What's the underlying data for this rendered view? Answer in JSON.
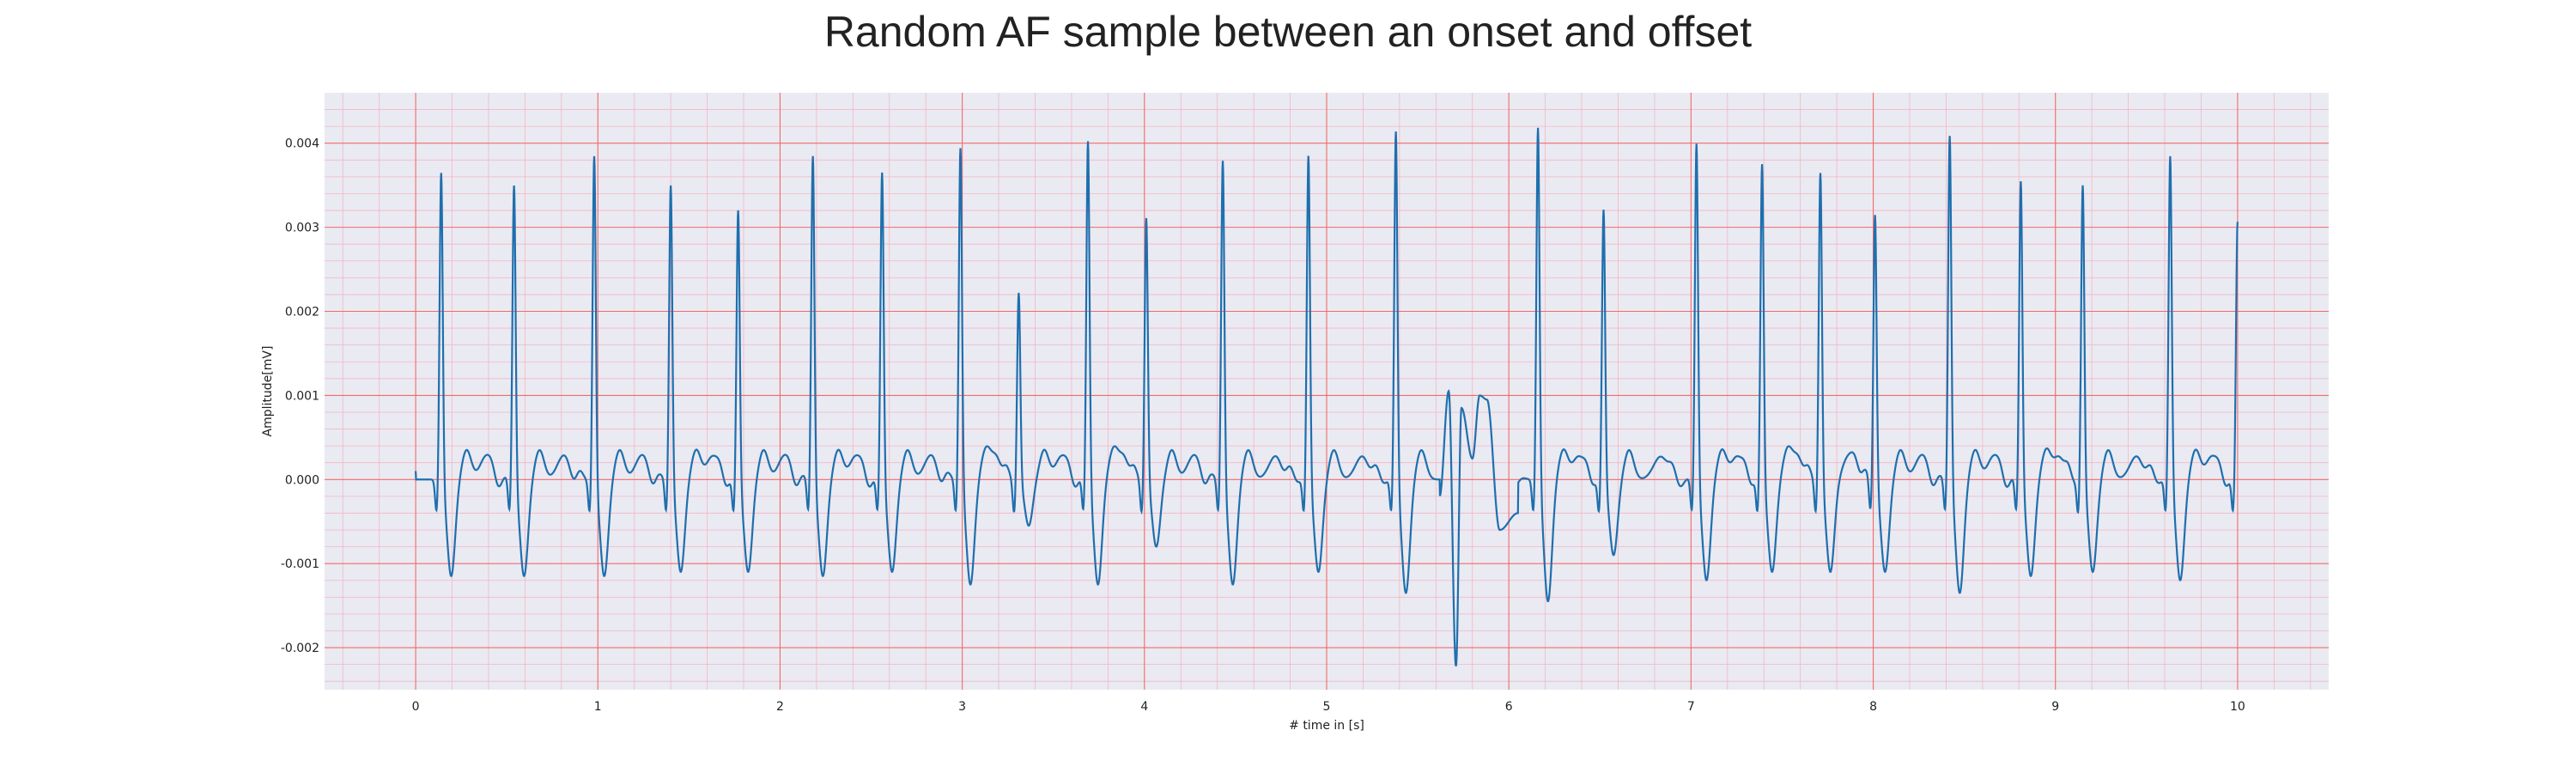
{
  "chart_data": {
    "type": "line",
    "title": "Random AF sample between an onset and offset",
    "xlabel": "# time in [s]",
    "ylabel": "Amplitude[mV]",
    "xlim": [
      -0.5,
      10.5
    ],
    "ylim": [
      -0.0025,
      0.0046
    ],
    "xticks": [
      0,
      1,
      2,
      3,
      4,
      5,
      6,
      7,
      8,
      9,
      10
    ],
    "xtick_labels": [
      "0",
      "1",
      "2",
      "3",
      "4",
      "5",
      "6",
      "7",
      "8",
      "9",
      "10"
    ],
    "yticks": [
      -0.002,
      -0.001,
      0.0,
      0.001,
      0.002,
      0.003,
      0.004
    ],
    "ytick_labels": [
      "-0.002",
      "-0.001",
      "0.000",
      "0.001",
      "0.002",
      "0.003",
      "0.004"
    ],
    "grid": "major and minor",
    "colors": {
      "line": "#1f6fad",
      "plot_background": "#eaeaf2",
      "major_grid": "#f06a6a",
      "minor_grid": "#f4b6c2"
    },
    "series": [
      {
        "beats": [
          {
            "t": 0.14,
            "peak": 0.0037,
            "trough": -0.00115
          },
          {
            "t": 0.54,
            "peak": 0.00355,
            "trough": -0.00115
          },
          {
            "t": 0.98,
            "peak": 0.0039,
            "trough": -0.00115
          },
          {
            "t": 1.4,
            "peak": 0.00355,
            "trough": -0.0011
          },
          {
            "t": 1.77,
            "peak": 0.00325,
            "trough": -0.0011
          },
          {
            "t": 2.18,
            "peak": 0.0039,
            "trough": -0.00115
          },
          {
            "t": 2.56,
            "peak": 0.0037,
            "trough": -0.0011
          },
          {
            "t": 2.99,
            "peak": 0.004,
            "trough": -0.00125
          },
          {
            "t": 3.31,
            "peak": 0.00225,
            "trough": -0.00055
          },
          {
            "t": 3.69,
            "peak": 0.00408,
            "trough": -0.00125
          },
          {
            "t": 4.01,
            "peak": 0.00315,
            "trough": -0.0008
          },
          {
            "t": 4.43,
            "peak": 0.00385,
            "trough": -0.00125
          },
          {
            "t": 4.9,
            "peak": 0.0039,
            "trough": -0.0011
          },
          {
            "t": 5.38,
            "peak": 0.0042,
            "trough": -0.00135
          },
          {
            "t": 6.16,
            "peak": 0.00425,
            "trough": -0.00145
          },
          {
            "t": 6.52,
            "peak": 0.00325,
            "trough": -0.0009
          },
          {
            "t": 7.03,
            "peak": 0.00405,
            "trough": -0.0012
          },
          {
            "t": 7.39,
            "peak": 0.0038,
            "trough": -0.0011
          },
          {
            "t": 7.71,
            "peak": 0.0037,
            "trough": -0.0011
          },
          {
            "t": 8.01,
            "peak": 0.0032,
            "trough": -0.0011
          },
          {
            "t": 8.42,
            "peak": 0.00415,
            "trough": -0.00135
          },
          {
            "t": 8.81,
            "peak": 0.0036,
            "trough": -0.00115
          },
          {
            "t": 9.15,
            "peak": 0.00355,
            "trough": -0.0011
          },
          {
            "t": 9.63,
            "peak": 0.0039,
            "trough": -0.0012
          },
          {
            "t": 10.0,
            "peak": 0.0031,
            "trough": -0.0008
          }
        ],
        "irregular_segment": {
          "points": [
            [
              5.62,
              -0.0002
            ],
            [
              5.67,
              0.00105
            ],
            [
              5.71,
              -0.00222
            ],
            [
              5.74,
              0.00085
            ],
            [
              5.8,
              0.00025
            ],
            [
              5.84,
              0.001
            ],
            [
              5.88,
              0.00095
            ],
            [
              5.95,
              -0.0006
            ],
            [
              6.05,
              -0.0004
            ]
          ]
        }
      }
    ]
  }
}
